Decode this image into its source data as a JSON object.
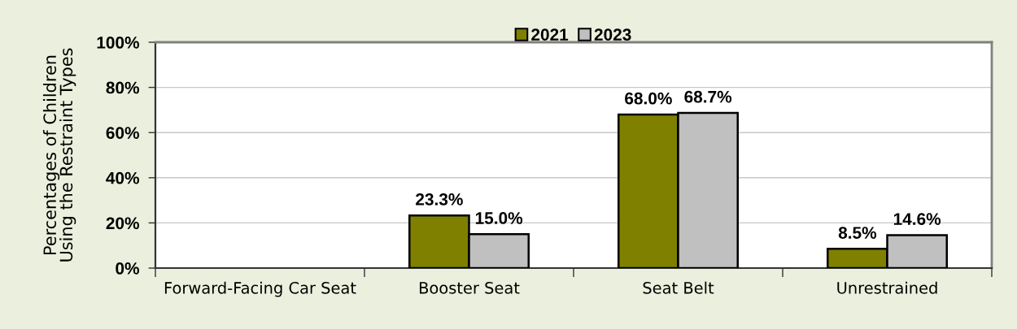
{
  "chart_data": {
    "type": "bar",
    "ylabel": "Percentages of Children\nUsing the Restraint Types",
    "categories": [
      "Forward-Facing Car Seat",
      "Booster Seat",
      "Seat Belt",
      "Unrestrained"
    ],
    "series": [
      {
        "name": "2021",
        "color": "#808000",
        "values": [
          null,
          23.3,
          68.0,
          8.5
        ],
        "value_labels": [
          null,
          "23.3%",
          "68.0%",
          "8.5%"
        ]
      },
      {
        "name": "2023",
        "color": "#c0c0c0",
        "values": [
          null,
          15.0,
          68.7,
          14.6
        ],
        "value_labels": [
          null,
          "15.0%",
          "68.7%",
          "14.6%"
        ]
      }
    ],
    "ylim": [
      0,
      100
    ],
    "yticks": [
      {
        "value": 0,
        "label": "0%"
      },
      {
        "value": 20,
        "label": "20%"
      },
      {
        "value": 40,
        "label": "40%"
      },
      {
        "value": 60,
        "label": "60%"
      },
      {
        "value": 80,
        "label": "80%"
      },
      {
        "value": 100,
        "label": "100%"
      }
    ],
    "grid": "y",
    "legend": "top"
  }
}
